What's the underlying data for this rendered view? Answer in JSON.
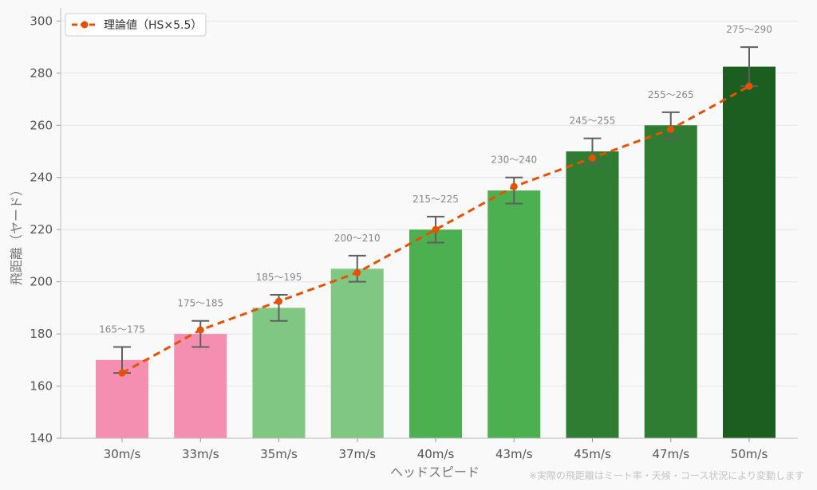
{
  "chart_data": {
    "type": "bar",
    "categories": [
      "30m/s",
      "33m/s",
      "35m/s",
      "37m/s",
      "40m/s",
      "43m/s",
      "45m/s",
      "47m/s",
      "50m/s"
    ],
    "values": [
      170,
      180,
      190,
      205,
      220,
      235,
      250,
      260,
      282.5
    ],
    "ranges": [
      [
        165,
        175
      ],
      [
        175,
        185
      ],
      [
        185,
        195
      ],
      [
        200,
        210
      ],
      [
        215,
        225
      ],
      [
        230,
        240
      ],
      [
        245,
        255
      ],
      [
        255,
        265
      ],
      [
        275,
        290
      ]
    ],
    "range_labels": [
      "165〜175",
      "175〜185",
      "185〜195",
      "200〜210",
      "215〜225",
      "230〜240",
      "245〜255",
      "255〜265",
      "275〜290"
    ],
    "bar_colors": [
      "#f48fb1",
      "#f48fb1",
      "#81c784",
      "#81c784",
      "#4caf50",
      "#4caf50",
      "#2e7d32",
      "#2e7d32",
      "#1b5e20"
    ],
    "series": [
      {
        "name": "理論値（HS×5.5）",
        "type": "line",
        "values": [
          165,
          181.5,
          192.5,
          203.5,
          220,
          236.5,
          247.5,
          258.5,
          275
        ],
        "color": "#e65100"
      }
    ],
    "xlabel": "ヘッドスピード",
    "ylabel": "飛距離（ヤード）",
    "ylim": [
      140,
      305
    ],
    "yticks": [
      140,
      160,
      180,
      200,
      220,
      240,
      260,
      280,
      300
    ],
    "grid": true,
    "legend_position": "upper-left",
    "footnote": "※実際の飛距離はミート率・天候・コース状況により変動します"
  }
}
